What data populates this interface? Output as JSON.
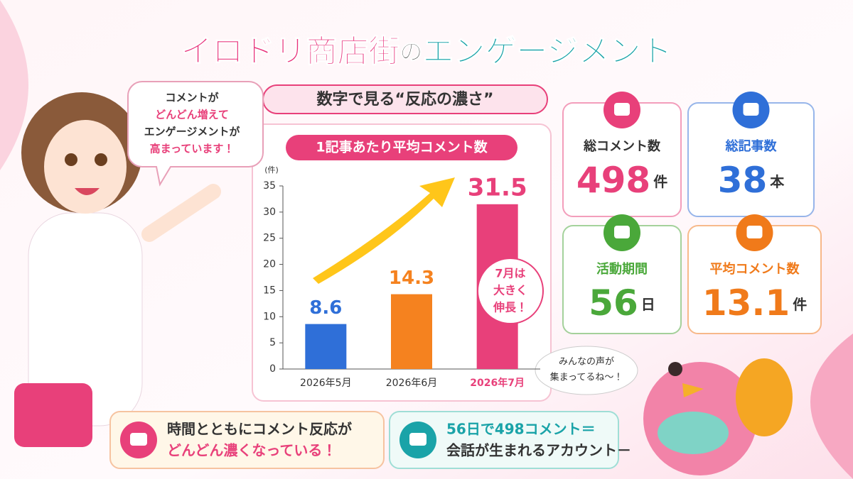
{
  "title": [
    "イロドリ商店街",
    "の",
    "エンゲージメント"
  ],
  "subtitle": "数字で見る“反応の濃さ”",
  "speech_bubble": [
    "コメントが",
    "どんどん増えて",
    "エンゲージメントが",
    "高まっています！"
  ],
  "chart_data": {
    "type": "bar",
    "title": "1記事あたり平均コメント数",
    "y_unit": "(件)",
    "categories": [
      "2026年5月",
      "2026年6月",
      "2026年7月"
    ],
    "values": [
      8.6,
      14.3,
      31.5
    ],
    "colors": [
      "#2f6fd8",
      "#f5821f",
      "#e8407a"
    ],
    "ylim": [
      0,
      35
    ],
    "yticks": [
      0,
      5,
      10,
      15,
      20,
      25,
      30,
      35
    ],
    "grid": false,
    "annotation": [
      "7月は",
      "大きく",
      "伸長！"
    ]
  },
  "stats": [
    {
      "label": "総コメント数",
      "value": "498",
      "unit": "件",
      "color": "#e8407a"
    },
    {
      "label": "総記事数",
      "value": "38",
      "unit": "本",
      "color": "#2f6fd8"
    },
    {
      "label": "活動期間",
      "value": "56",
      "unit": "日",
      "color": "#4aa83a"
    },
    {
      "label": "平均コメント数",
      "value": "13.1",
      "unit": "件",
      "color": "#f07a1a"
    }
  ],
  "bird_bubble": [
    "みんなの声が",
    "集まってるね～！"
  ],
  "footer": [
    {
      "lines": [
        "時間とともにコメント反応が",
        "どんどん濃くなっている！"
      ],
      "color": "#e8407a"
    },
    {
      "lines": [
        "56日で498コメント＝",
        "会話が生まれるアカウント－"
      ],
      "color": "#1aa3a8"
    }
  ]
}
